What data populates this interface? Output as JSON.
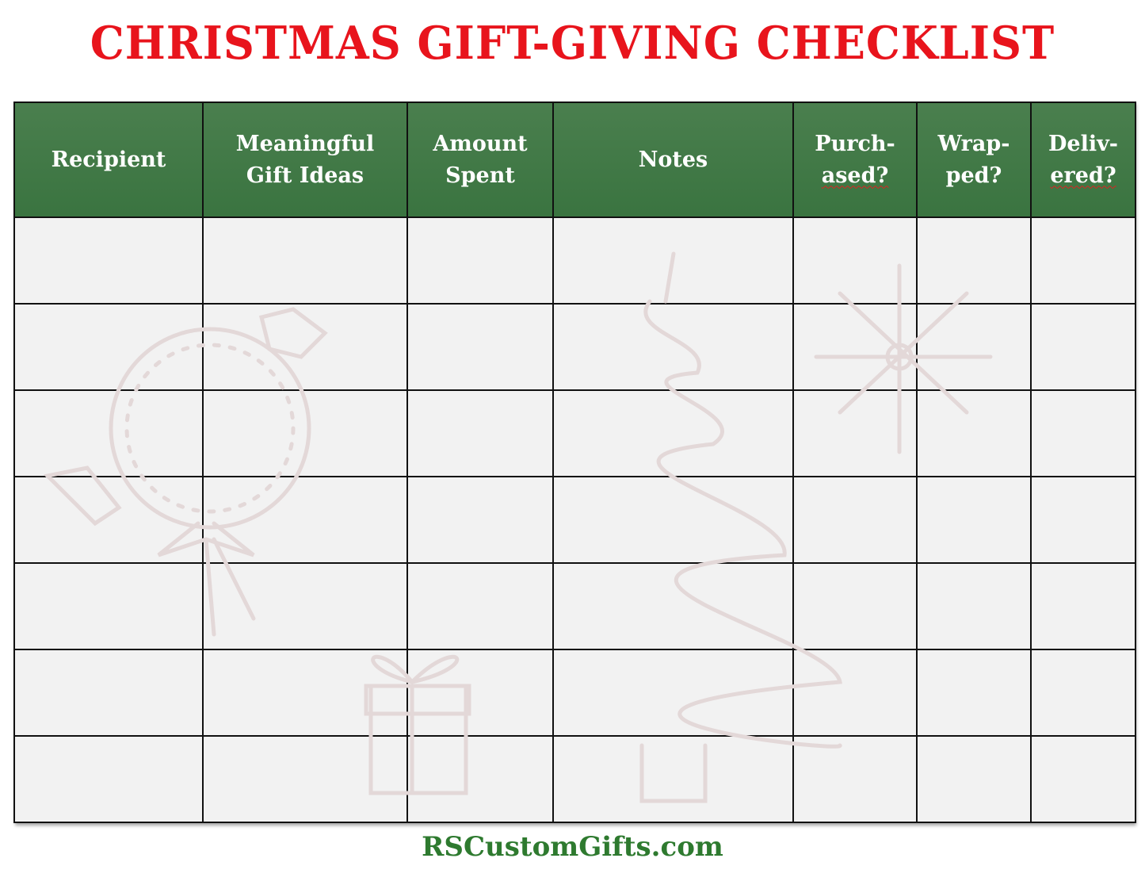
{
  "title": "CHRISTMAS GIFT-GIVING CHECKLIST",
  "columns": [
    {
      "line1": "Recipient",
      "line2": ""
    },
    {
      "line1": "Meaningful",
      "line2": "Gift Ideas"
    },
    {
      "line1": "Amount",
      "line2": "Spent"
    },
    {
      "line1": "Notes",
      "line2": ""
    },
    {
      "line1": "Purch-",
      "line2": "ased?"
    },
    {
      "line1": "Wrap-",
      "line2": "ped?"
    },
    {
      "line1": "Deliv-",
      "line2": "ered?"
    }
  ],
  "row_count": 7,
  "footer": "RSCustomGifts.com",
  "colors": {
    "title": "#e8141c",
    "header_bg": "#3f7a45",
    "footer": "#2e7a2f",
    "cell_bg": "#f2f2f2"
  },
  "watermark_icons": [
    "wreath-icon",
    "christmas-tree-icon",
    "snowflake-icon",
    "gift-box-icon"
  ]
}
